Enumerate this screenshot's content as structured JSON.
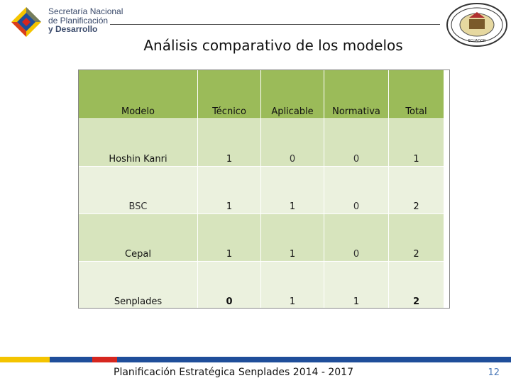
{
  "header": {
    "logo_lines": [
      "Secretaría Nacional",
      "de Planificación",
      "y Desarrollo"
    ],
    "seal_text": "ECUADOR"
  },
  "title": "Análisis comparativo de los modelos",
  "table": {
    "columns": [
      "Modelo",
      "Técnico",
      "Aplicable",
      "Normativa",
      "Total"
    ],
    "rows": [
      [
        "Hoshin Kanri",
        "1",
        "0",
        "0",
        "1"
      ],
      [
        "BSC",
        "1",
        "1",
        "0",
        "2"
      ],
      [
        "Cepal",
        "1",
        "1",
        "0",
        "2"
      ],
      [
        "Senplades",
        "0",
        "1",
        "1",
        "2"
      ]
    ]
  },
  "footer": {
    "text": "Planificación Estratégica Senplades 2014 - 2017",
    "page_number": "12"
  },
  "colors": {
    "header_green": "#9bbb59",
    "row_green": "#d7e4bd",
    "row_green_light": "#ebf1de",
    "footer_yellow": "#f4c400",
    "footer_blue": "#1f4e9a",
    "footer_red": "#d6261f"
  }
}
